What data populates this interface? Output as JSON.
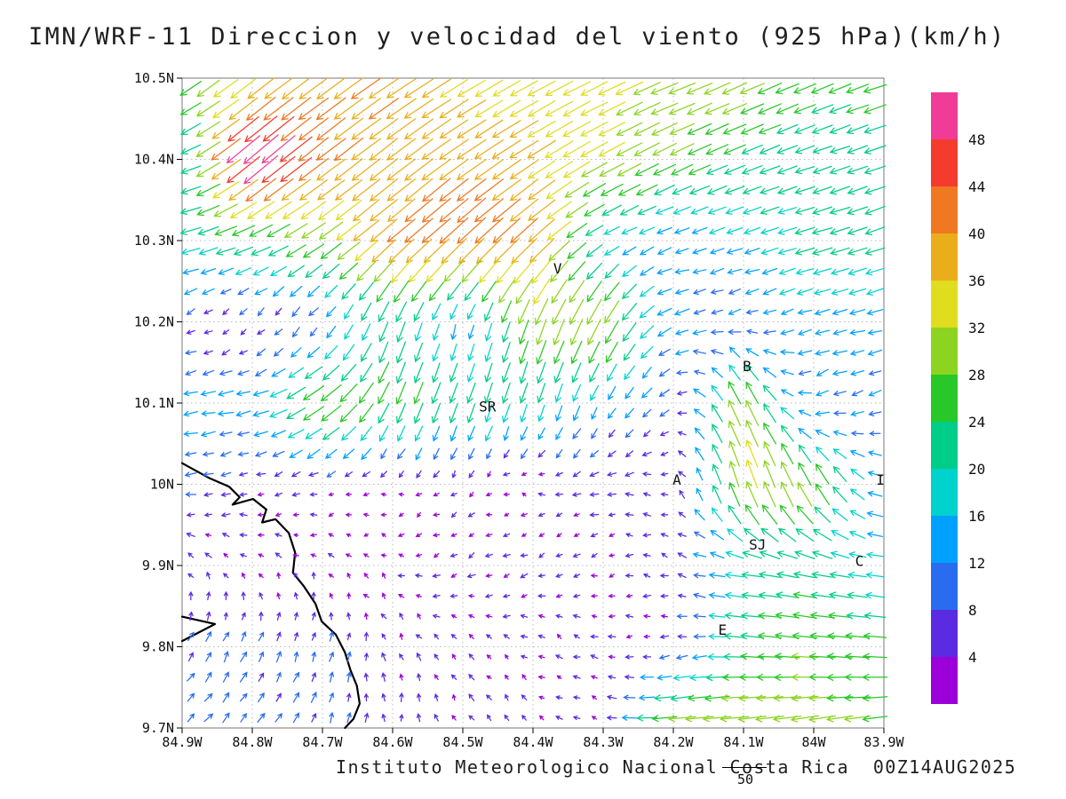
{
  "title": "IMN/WRF-11 Direccion y velocidad del viento (925 hPa)(km/h)",
  "footer": {
    "credit": "Instituto Meteorologico Nacional Costa Rica  00Z14AUG2025",
    "ref_vector_label": "50"
  },
  "chart_data": {
    "type": "quiver",
    "title": "IMN/WRF-11 Direccion y velocidad del viento (925 hPa)(km/h)",
    "model": "IMN/WRF-11",
    "variable": "Direccion y velocidad del viento",
    "level": "925 hPa",
    "unit": "km/h",
    "lon_range": [
      -84.9,
      -83.9
    ],
    "lat_range": [
      9.7,
      10.5
    ],
    "x_tick_labels": [
      "84.9W",
      "84.8W",
      "84.7W",
      "84.6W",
      "84.5W",
      "84.4W",
      "84.3W",
      "84.2W",
      "84.1W",
      "84W",
      "83.9W"
    ],
    "y_tick_labels": [
      "10.5N",
      "10.4N",
      "10.3N",
      "10.2N",
      "10.1N",
      "10N",
      "9.9N",
      "9.8N",
      "9.7N"
    ],
    "grid": "dotted",
    "arrow_spacing_deg": 0.025,
    "reference_vector": {
      "value": 50,
      "label": "50"
    },
    "colorbar": {
      "band_size": 4,
      "tick_values_top_to_bottom": [
        48,
        44,
        40,
        36,
        32,
        28,
        24,
        20,
        16,
        12,
        8,
        4
      ],
      "colors_low_to_high": [
        "#9c00d8",
        "#5a2be0",
        "#2a6cf0",
        "#00a0ff",
        "#00d2cd",
        "#00cd87",
        "#28c828",
        "#8cd420",
        "#e0dc1e",
        "#eaae1a",
        "#f07820",
        "#f43c2e",
        "#f03c96"
      ]
    },
    "stations": [
      {
        "label": "V",
        "lon": -84.365,
        "lat": 10.265
      },
      {
        "label": "B",
        "lon": -84.095,
        "lat": 10.145
      },
      {
        "label": "SR",
        "lon": -84.465,
        "lat": 10.095
      },
      {
        "label": "A",
        "lon": -84.195,
        "lat": 10.005
      },
      {
        "label": "I",
        "lon": -83.905,
        "lat": 10.005
      },
      {
        "label": "SJ",
        "lon": -84.08,
        "lat": 9.925
      },
      {
        "label": "C",
        "lon": -83.935,
        "lat": 9.905
      },
      {
        "label": "E",
        "lon": -84.13,
        "lat": 9.82
      }
    ],
    "coastlines": [
      [
        [
          -84.9,
          10.026
        ],
        [
          -84.862,
          10.008
        ],
        [
          -84.833,
          9.997
        ],
        [
          -84.818,
          9.984
        ],
        [
          -84.828,
          9.975
        ],
        [
          -84.799,
          9.982
        ],
        [
          -84.78,
          9.969
        ],
        [
          -84.786,
          9.953
        ],
        [
          -84.767,
          9.957
        ],
        [
          -84.748,
          9.94
        ],
        [
          -84.739,
          9.916
        ],
        [
          -84.742,
          9.891
        ],
        [
          -84.727,
          9.875
        ],
        [
          -84.71,
          9.853
        ],
        [
          -84.701,
          9.831
        ],
        [
          -84.681,
          9.815
        ],
        [
          -84.668,
          9.793
        ],
        [
          -84.66,
          9.771
        ],
        [
          -84.651,
          9.752
        ],
        [
          -84.647,
          9.73
        ],
        [
          -84.656,
          9.711
        ],
        [
          -84.668,
          9.7
        ]
      ],
      [
        [
          -84.9,
          9.837
        ],
        [
          -84.853,
          9.828
        ],
        [
          -84.9,
          9.807
        ]
      ]
    ],
    "wind_grid": {
      "lats": [
        10.5,
        10.4,
        10.3,
        10.2,
        10.1,
        10.0,
        9.9,
        9.8,
        9.7
      ],
      "lons": [
        -84.9,
        -84.8,
        -84.7,
        -84.6,
        -84.5,
        -84.4,
        -84.3,
        -84.2,
        -84.1,
        -84.0,
        -83.9
      ],
      "u": [
        [
          -22,
          -27,
          -32,
          -33,
          -30,
          -30,
          -29,
          -30,
          -27,
          -24,
          -24
        ],
        [
          -17,
          -42,
          -33,
          -31,
          -32,
          -31,
          -29,
          -25,
          -22,
          -19,
          -22
        ],
        [
          -21,
          -22,
          -24,
          -30,
          -32,
          -30,
          -14,
          -13,
          -15,
          -21,
          -20
        ],
        [
          -4,
          -3,
          -5,
          -8,
          -3,
          -10,
          -16,
          -13,
          -9,
          -13,
          -15
        ],
        [
          -15,
          -15,
          -26,
          -10,
          -8,
          -6,
          -6,
          -8,
          -14,
          -12,
          -9
        ],
        [
          -9,
          -5,
          -4,
          -3,
          -2,
          -3,
          -7,
          -4,
          -10,
          -14,
          -13
        ],
        [
          -3,
          -3,
          -2,
          -3,
          -5,
          -4,
          -3,
          -5,
          -21,
          -22,
          -15
        ],
        [
          5,
          4,
          2,
          -2,
          -3,
          -3,
          -4,
          -5,
          -23,
          -28,
          -25
        ],
        [
          7,
          6,
          4,
          0,
          -2,
          -3,
          -4,
          -33,
          -32,
          -30,
          -26
        ]
      ],
      "v": [
        [
          -16,
          -20,
          -24,
          -22,
          -18,
          -16,
          -14,
          -12,
          -12,
          -10,
          -8
        ],
        [
          -4,
          -36,
          -25,
          -24,
          -22,
          -20,
          -16,
          -12,
          -9,
          -6,
          -8
        ],
        [
          -5,
          -8,
          -17,
          -26,
          -30,
          -28,
          -7,
          -4,
          -5,
          -6,
          -7
        ],
        [
          -3,
          -4,
          -8,
          -22,
          -11,
          -28,
          -30,
          -4,
          -3,
          -4,
          -4
        ],
        [
          -2,
          -3,
          -18,
          -24,
          -22,
          -20,
          -12,
          -6,
          32,
          -5,
          -3
        ],
        [
          -2,
          -2,
          -2,
          -1,
          -2,
          1,
          -2,
          2,
          32,
          28,
          2
        ],
        [
          3,
          3,
          2,
          1,
          -3,
          -2,
          -1,
          2,
          3,
          4,
          2
        ],
        [
          8,
          8,
          8,
          5,
          3,
          2,
          1,
          -2,
          2,
          3,
          2
        ],
        [
          7,
          8,
          8,
          6,
          4,
          2,
          2,
          -3,
          -4,
          -5,
          -4
        ]
      ]
    }
  }
}
